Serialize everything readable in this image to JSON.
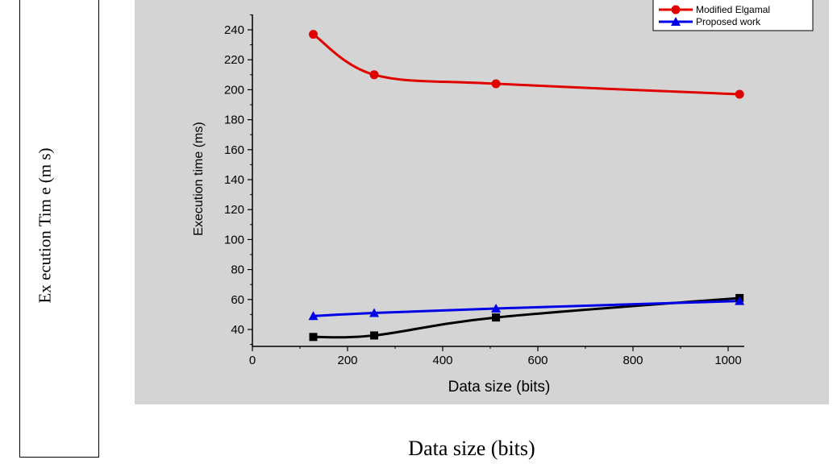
{
  "outer": {
    "ylabel": "Ex ecution Tim e (m s)",
    "xlabel": "Data size (bits)"
  },
  "chart_data": {
    "type": "line",
    "title": "",
    "xlabel": "Data size (bits)",
    "ylabel": "Execution time (ms)",
    "xlim": [
      0,
      1100
    ],
    "ylim": [
      30,
      250
    ],
    "xticks": [
      0,
      200,
      400,
      600,
      800,
      1000
    ],
    "yticks": [
      40,
      60,
      80,
      100,
      120,
      140,
      160,
      180,
      200,
      220,
      240
    ],
    "grid": false,
    "legend_position": "top-right",
    "x": [
      128,
      256,
      512,
      1024
    ],
    "series": [
      {
        "name": "",
        "color": "#000000",
        "marker": "square",
        "values": [
          35,
          36,
          48,
          61
        ]
      },
      {
        "name": "Modified Elgamal",
        "color": "#e00000",
        "marker": "circle",
        "values": [
          237,
          210,
          204,
          197
        ]
      },
      {
        "name": "Proposed work",
        "color": "#0000e6",
        "marker": "triangle",
        "values": [
          49,
          51,
          54,
          59
        ]
      }
    ]
  }
}
